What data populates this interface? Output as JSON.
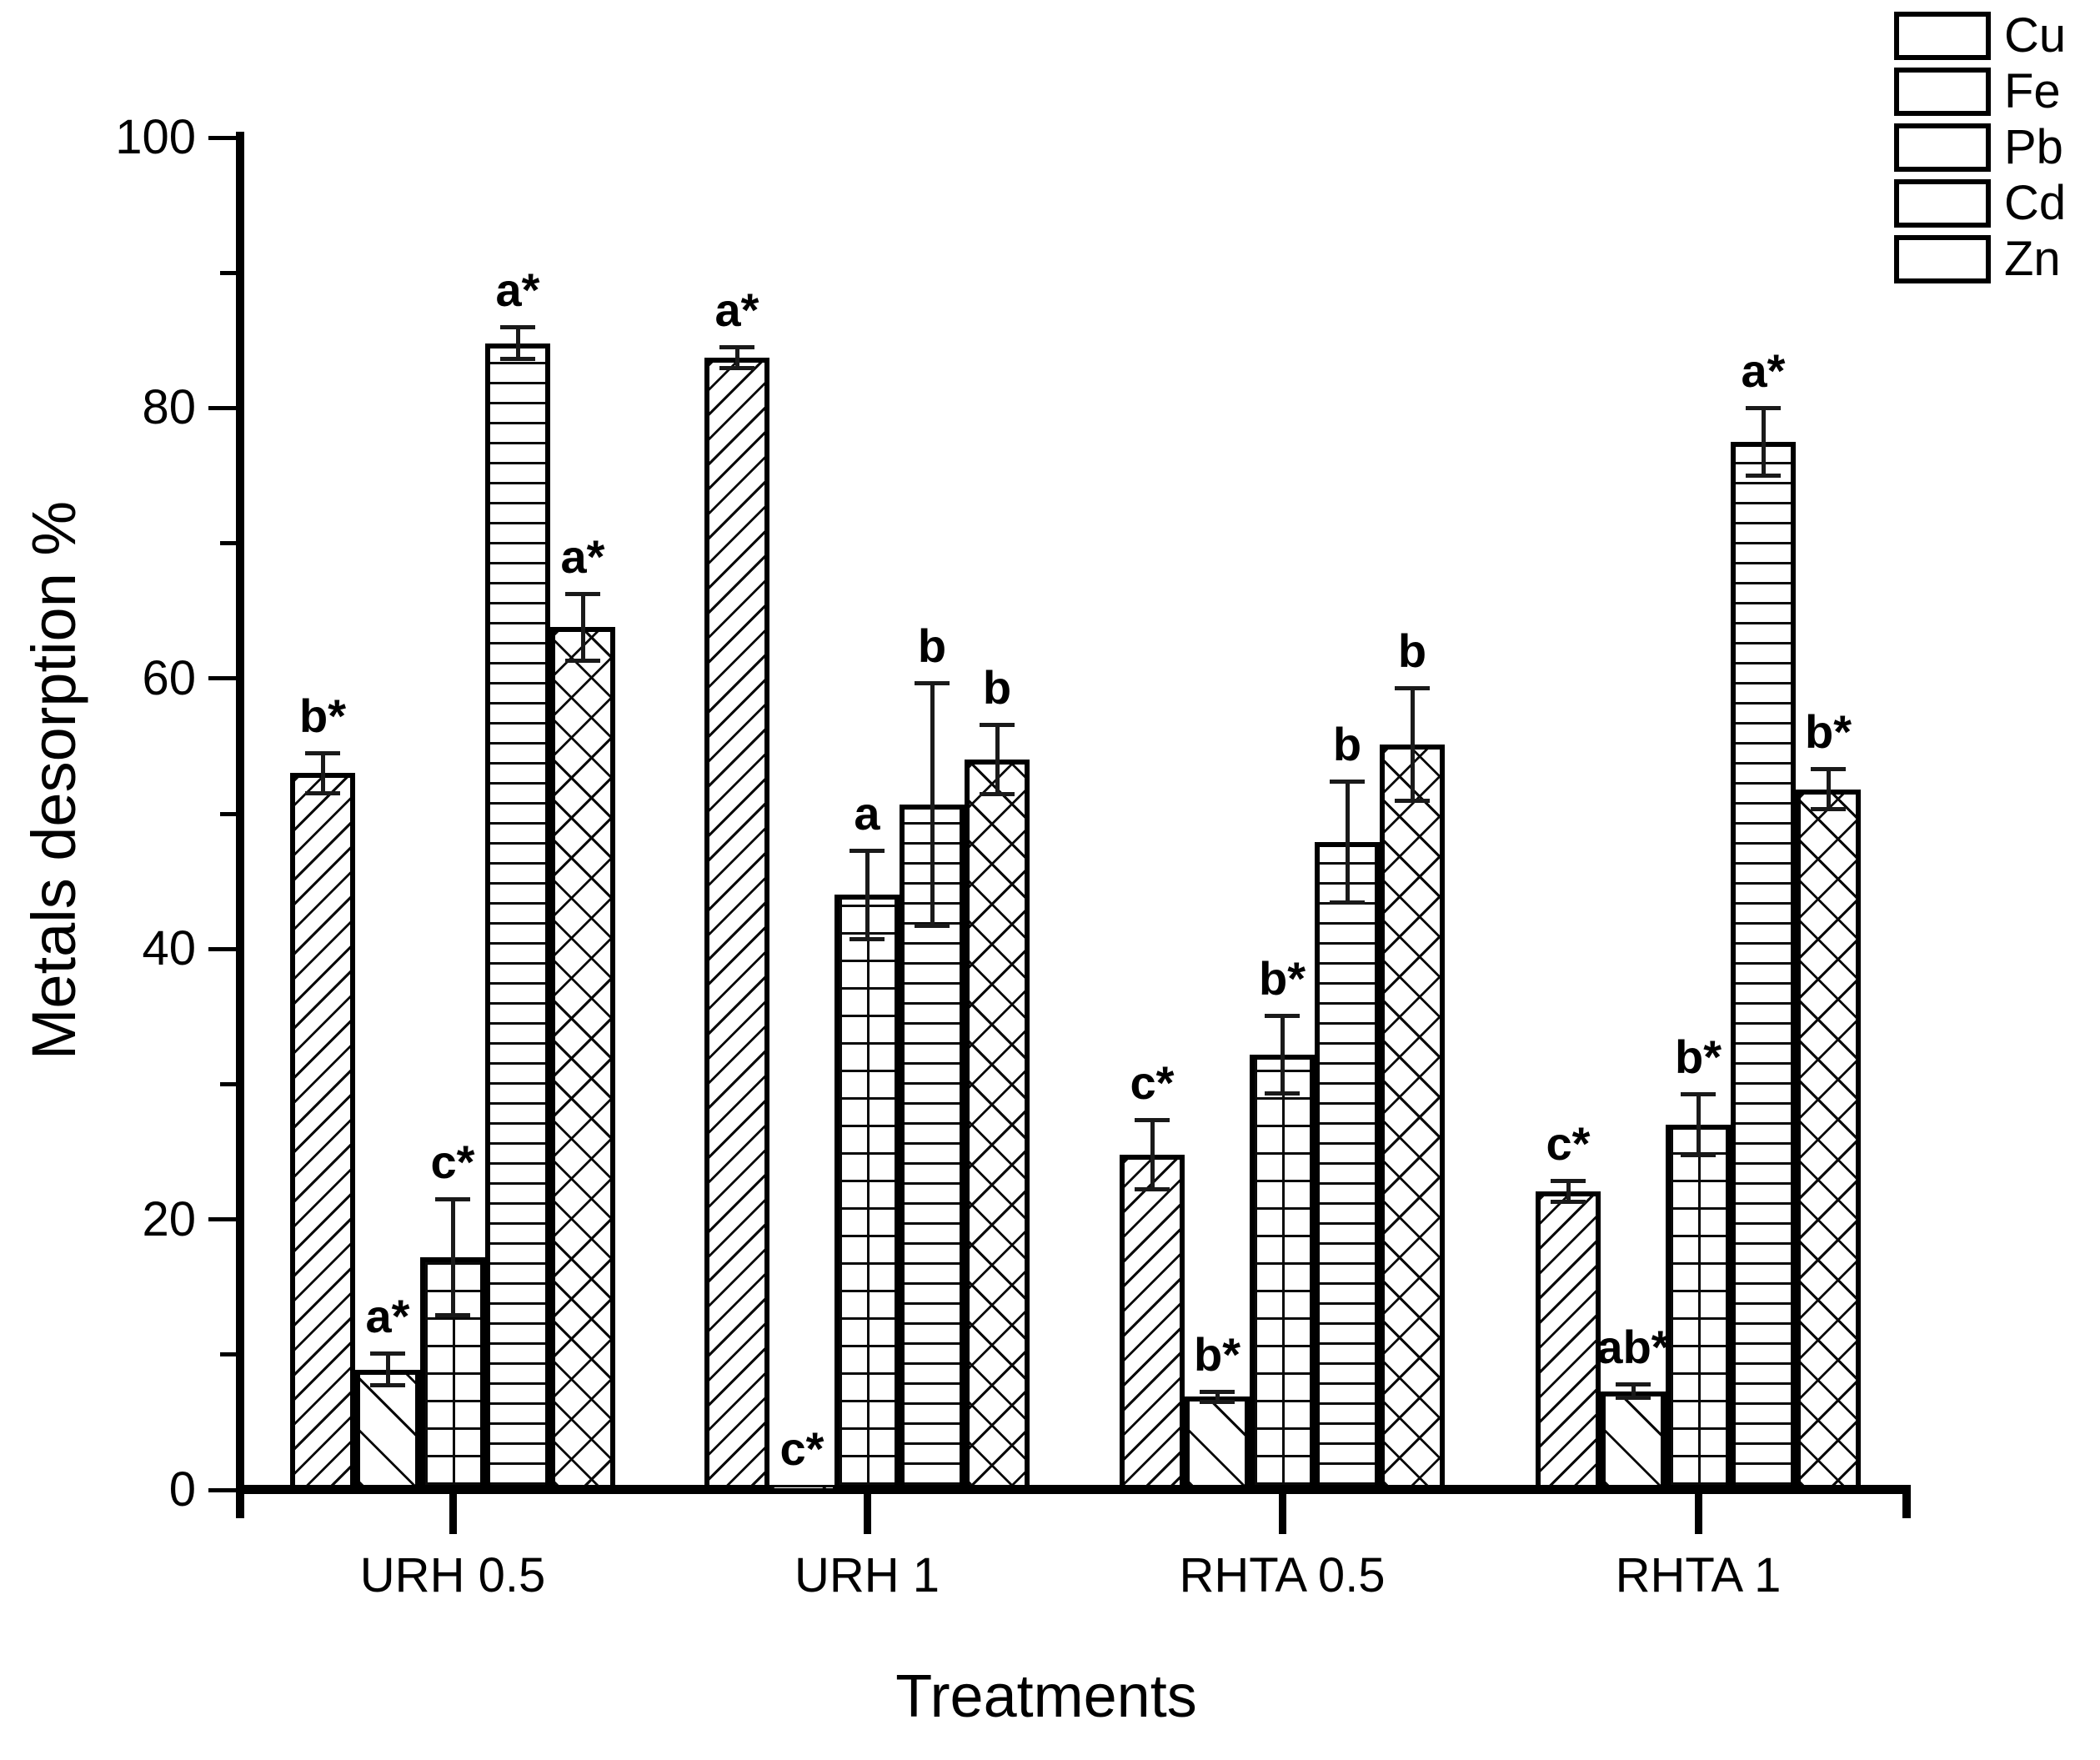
{
  "chart_data": {
    "type": "bar",
    "title": "",
    "xlabel": "Treatments",
    "ylabel": "Metals desorption %",
    "ylim": [
      0,
      100
    ],
    "y_major_ticks": [
      0,
      20,
      40,
      60,
      80,
      100
    ],
    "y_minor_ticks": [
      10,
      30,
      50,
      70,
      90
    ],
    "grid": false,
    "legend_position": "top-right",
    "categories": [
      "URH 0.5",
      "URH 1",
      "RHTA 0.5",
      "RHTA 1"
    ],
    "series": [
      {
        "name": "Cu",
        "pattern": "diagonal-forward",
        "values": [
          53.0,
          83.7,
          24.8,
          22.1
        ],
        "errors": [
          1.5,
          0.8,
          2.6,
          0.8
        ],
        "sig_labels": [
          "b*",
          "a*",
          "c*",
          "c*"
        ]
      },
      {
        "name": "Fe",
        "pattern": "diagonal-backward",
        "values": [
          8.9,
          0.3,
          6.9,
          7.3
        ],
        "errors": [
          1.2,
          0,
          0.4,
          0.5
        ],
        "sig_labels": [
          "a*",
          "c*",
          "b*",
          "ab*"
        ]
      },
      {
        "name": "Pb",
        "pattern": "grid",
        "values": [
          17.2,
          44.0,
          32.2,
          27.0
        ],
        "errors": [
          4.3,
          3.3,
          2.9,
          2.3
        ],
        "sig_labels": [
          "c*",
          "a",
          "b*",
          "b*"
        ]
      },
      {
        "name": "Cd",
        "pattern": "horizontal-lines",
        "values": [
          84.8,
          50.7,
          47.9,
          77.5
        ],
        "errors": [
          1.2,
          9.0,
          4.5,
          2.5
        ],
        "sig_labels": [
          "a*",
          "b",
          "b",
          "a*"
        ]
      },
      {
        "name": "Zn",
        "pattern": "diagonal-crosshatch",
        "values": [
          63.8,
          54.0,
          55.1,
          51.8
        ],
        "errors": [
          2.5,
          2.6,
          4.2,
          1.5
        ],
        "sig_labels": [
          "a*",
          "b",
          "b",
          "b*"
        ]
      }
    ],
    "colors": {
      "bar_fill": "#ffffff",
      "bar_border": "#000000",
      "text": "#000000",
      "background": "#ffffff"
    }
  }
}
